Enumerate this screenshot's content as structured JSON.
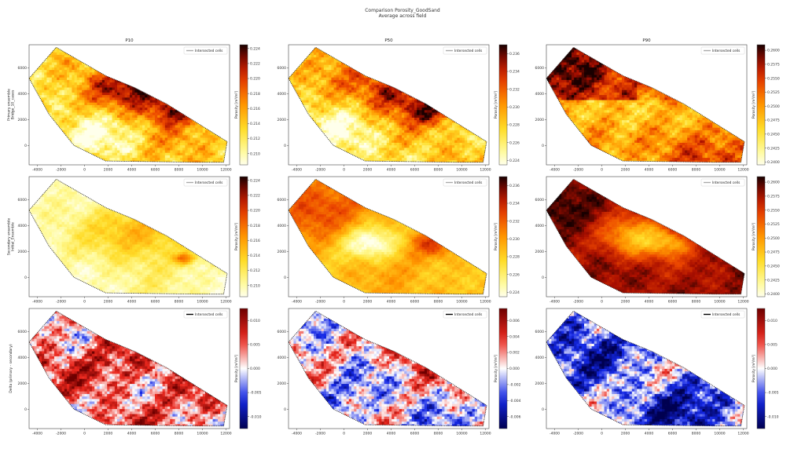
{
  "figure": {
    "title": "Comparison Porosity_GoodSand",
    "subtitle": "Average across field"
  },
  "chart_data": {
    "type": "heatmap",
    "columns": [
      "P10",
      "P50",
      "P90"
    ],
    "rows": [
      {
        "ylabel": "Primary ensemble\nBridge_10_cases"
      },
      {
        "ylabel": "Secondary ensemble\nInitial_Ensemble"
      },
      {
        "ylabel": "Delta (primary - secondary)"
      }
    ],
    "x_ticks": [
      "-4000",
      "-2000",
      "0",
      "2000",
      "4000",
      "6000",
      "8000",
      "10000",
      "12000"
    ],
    "x_tick_values": [
      -4000,
      -2000,
      0,
      2000,
      4000,
      6000,
      8000,
      10000,
      12000
    ],
    "y_ticks": [
      "0",
      "2000",
      "4000",
      "6000"
    ],
    "y_tick_values": [
      0,
      2000,
      4000,
      6000
    ],
    "xlim": [
      -4700,
      12300
    ],
    "ylim": [
      -1500,
      7800
    ],
    "legend_label": "Intersected cells",
    "colorbar_label": "Porosity [m³/m³]",
    "boundary": [
      [
        -4700,
        5200
      ],
      [
        -2400,
        7600
      ],
      [
        1800,
        5400
      ],
      [
        4200,
        4500
      ],
      [
        7000,
        3200
      ],
      [
        12100,
        300
      ],
      [
        11800,
        -1300
      ],
      [
        9500,
        -1300
      ],
      [
        1800,
        -1200
      ],
      [
        -900,
        0
      ],
      [
        -3000,
        2400
      ],
      [
        -4700,
        5200
      ]
    ],
    "panels": [
      {
        "row": 0,
        "col": 0,
        "cmap": "hot_r",
        "colorbar_ticks": [
          "0.224",
          "0.222",
          "0.220",
          "0.218",
          "0.216",
          "0.214",
          "0.212",
          "0.210"
        ],
        "colorbar_tick_values": [
          0.224,
          0.222,
          0.22,
          0.218,
          0.216,
          0.214,
          0.212,
          0.21
        ],
        "vmin": 0.2085,
        "vmax": 0.2245,
        "legend_line_color": "#aaaaaa"
      },
      {
        "row": 0,
        "col": 1,
        "cmap": "hot_r",
        "colorbar_ticks": [
          "0.236",
          "0.234",
          "0.232",
          "0.230",
          "0.228",
          "0.226",
          "0.224"
        ],
        "colorbar_tick_values": [
          0.236,
          0.234,
          0.232,
          0.23,
          0.228,
          0.226,
          0.224
        ],
        "vmin": 0.2235,
        "vmax": 0.237,
        "legend_line_color": "#aaaaaa"
      },
      {
        "row": 0,
        "col": 2,
        "cmap": "hot_r",
        "colorbar_ticks": [
          "0.2600",
          "0.2575",
          "0.2550",
          "0.2525",
          "0.2500",
          "0.2475",
          "0.2450",
          "0.2425",
          "0.2400"
        ],
        "colorbar_tick_values": [
          0.26,
          0.2575,
          0.255,
          0.2525,
          0.25,
          0.2475,
          0.245,
          0.2425,
          0.24
        ],
        "vmin": 0.2395,
        "vmax": 0.261,
        "legend_line_color": "#aaaaaa"
      },
      {
        "row": 1,
        "col": 0,
        "cmap": "hot_r",
        "colorbar_ticks": [
          "0.224",
          "0.222",
          "0.220",
          "0.218",
          "0.216",
          "0.214",
          "0.212",
          "0.210"
        ],
        "colorbar_tick_values": [
          0.224,
          0.222,
          0.22,
          0.218,
          0.216,
          0.214,
          0.212,
          0.21
        ],
        "vmin": 0.2085,
        "vmax": 0.2245,
        "legend_line_color": "#aaaaaa"
      },
      {
        "row": 1,
        "col": 1,
        "cmap": "hot_r",
        "colorbar_ticks": [
          "0.236",
          "0.234",
          "0.232",
          "0.230",
          "0.228",
          "0.226",
          "0.224"
        ],
        "colorbar_tick_values": [
          0.236,
          0.234,
          0.232,
          0.23,
          0.228,
          0.226,
          0.224
        ],
        "vmin": 0.2235,
        "vmax": 0.237,
        "legend_line_color": "#aaaaaa"
      },
      {
        "row": 1,
        "col": 2,
        "cmap": "hot_r",
        "colorbar_ticks": [
          "0.2600",
          "0.2575",
          "0.2550",
          "0.2525",
          "0.2500",
          "0.2475",
          "0.2450",
          "0.2425",
          "0.2400"
        ],
        "colorbar_tick_values": [
          0.26,
          0.2575,
          0.255,
          0.2525,
          0.25,
          0.2475,
          0.245,
          0.2425,
          0.24
        ],
        "vmin": 0.2395,
        "vmax": 0.261,
        "legend_line_color": "#aaaaaa"
      },
      {
        "row": 2,
        "col": 0,
        "cmap": "seismic",
        "colorbar_ticks": [
          "0.010",
          "0.005",
          "0.000",
          "-0.005",
          "-0.010"
        ],
        "colorbar_tick_values": [
          0.01,
          0.005,
          0.0,
          -0.005,
          -0.01
        ],
        "vmin": -0.0125,
        "vmax": 0.0125,
        "legend_line_color": "#000000"
      },
      {
        "row": 2,
        "col": 1,
        "cmap": "seismic",
        "colorbar_ticks": [
          "0.006",
          "0.004",
          "0.002",
          "0.000",
          "-0.002",
          "-0.004",
          "-0.006"
        ],
        "colorbar_tick_values": [
          0.006,
          0.004,
          0.002,
          0.0,
          -0.002,
          -0.004,
          -0.006
        ],
        "vmin": -0.0075,
        "vmax": 0.0075,
        "legend_line_color": "#000000"
      },
      {
        "row": 2,
        "col": 2,
        "cmap": "seismic",
        "colorbar_ticks": [
          "0.010",
          "0.005",
          "0.000",
          "-0.005",
          "-0.010"
        ],
        "colorbar_tick_values": [
          0.01,
          0.005,
          0.0,
          -0.005,
          -0.01
        ],
        "vmin": -0.0125,
        "vmax": 0.0125,
        "legend_line_color": "#000000"
      }
    ]
  }
}
